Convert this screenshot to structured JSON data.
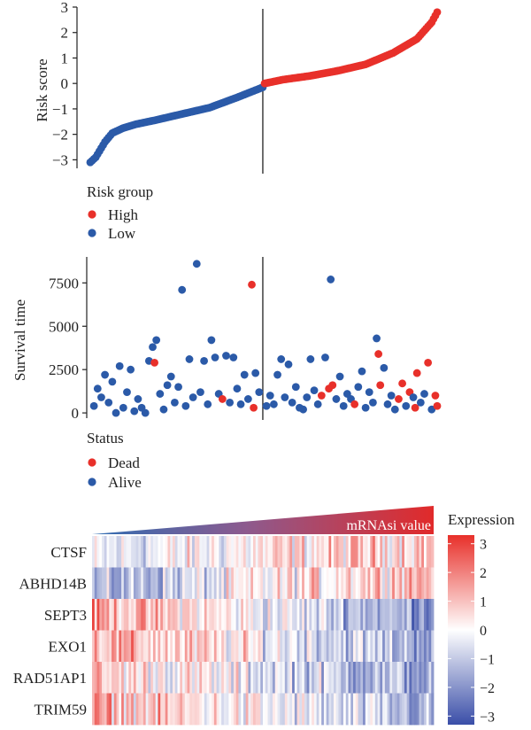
{
  "chart_data": [
    {
      "type": "scatter",
      "id": "risk-score-panel",
      "ylabel": "Risk score",
      "ylim": [
        -3.3,
        3.0
      ],
      "yticks": [
        3,
        2,
        1,
        0,
        -1,
        -2,
        -3
      ],
      "n_patients": 190,
      "cutoff_index": 94,
      "legend": {
        "title": "Risk group",
        "entries": [
          {
            "label": "High",
            "color": "#e8302a"
          },
          {
            "label": "Low",
            "color": "#2b5aa8"
          }
        ]
      },
      "curve_points": [
        [
          0,
          -3.1
        ],
        [
          3,
          -2.9
        ],
        [
          8,
          -2.3
        ],
        [
          12,
          -1.95
        ],
        [
          18,
          -1.75
        ],
        [
          25,
          -1.6
        ],
        [
          35,
          -1.45
        ],
        [
          50,
          -1.2
        ],
        [
          65,
          -0.95
        ],
        [
          80,
          -0.55
        ],
        [
          94,
          -0.15
        ],
        [
          95,
          0.0
        ],
        [
          105,
          0.15
        ],
        [
          120,
          0.3
        ],
        [
          135,
          0.5
        ],
        [
          150,
          0.75
        ],
        [
          165,
          1.2
        ],
        [
          178,
          1.75
        ],
        [
          186,
          2.4
        ],
        [
          189,
          2.8
        ]
      ]
    },
    {
      "type": "scatter",
      "id": "survival-time-panel",
      "ylabel": "Survival time",
      "ylim": [
        -200,
        9000
      ],
      "yticks": [
        7500,
        5000,
        2500,
        0
      ],
      "legend": {
        "title": "Status",
        "entries": [
          {
            "label": "Dead",
            "color": "#e8302a"
          },
          {
            "label": "Alive",
            "color": "#2b5aa8"
          }
        ]
      },
      "points": [
        [
          2,
          400,
          "Alive"
        ],
        [
          4,
          1400,
          "Alive"
        ],
        [
          6,
          900,
          "Alive"
        ],
        [
          8,
          2200,
          "Alive"
        ],
        [
          10,
          600,
          "Alive"
        ],
        [
          12,
          1800,
          "Alive"
        ],
        [
          14,
          0,
          "Alive"
        ],
        [
          16,
          2700,
          "Alive"
        ],
        [
          18,
          300,
          "Alive"
        ],
        [
          20,
          1200,
          "Alive"
        ],
        [
          22,
          2500,
          "Alive"
        ],
        [
          24,
          100,
          "Alive"
        ],
        [
          26,
          800,
          "Alive"
        ],
        [
          28,
          300,
          "Alive"
        ],
        [
          30,
          0,
          "Alive"
        ],
        [
          32,
          3000,
          "Alive"
        ],
        [
          34,
          3800,
          "Alive"
        ],
        [
          35,
          2900,
          "Dead"
        ],
        [
          36,
          4200,
          "Alive"
        ],
        [
          38,
          1100,
          "Alive"
        ],
        [
          40,
          200,
          "Alive"
        ],
        [
          42,
          1600,
          "Alive"
        ],
        [
          44,
          2100,
          "Alive"
        ],
        [
          46,
          600,
          "Alive"
        ],
        [
          48,
          1500,
          "Alive"
        ],
        [
          50,
          7100,
          "Alive"
        ],
        [
          52,
          400,
          "Alive"
        ],
        [
          54,
          3100,
          "Alive"
        ],
        [
          56,
          900,
          "Alive"
        ],
        [
          58,
          8600,
          "Alive"
        ],
        [
          60,
          1200,
          "Alive"
        ],
        [
          62,
          3000,
          "Alive"
        ],
        [
          64,
          500,
          "Alive"
        ],
        [
          66,
          4200,
          "Alive"
        ],
        [
          68,
          3200,
          "Alive"
        ],
        [
          70,
          1100,
          "Alive"
        ],
        [
          72,
          800,
          "Dead"
        ],
        [
          74,
          3300,
          "Alive"
        ],
        [
          76,
          600,
          "Alive"
        ],
        [
          78,
          3200,
          "Alive"
        ],
        [
          80,
          1400,
          "Alive"
        ],
        [
          82,
          500,
          "Alive"
        ],
        [
          84,
          2200,
          "Alive"
        ],
        [
          86,
          800,
          "Alive"
        ],
        [
          88,
          7400,
          "Dead"
        ],
        [
          89,
          300,
          "Dead"
        ],
        [
          90,
          2300,
          "Alive"
        ],
        [
          92,
          1200,
          "Alive"
        ],
        [
          96,
          400,
          "Alive"
        ],
        [
          98,
          1000,
          "Alive"
        ],
        [
          100,
          500,
          "Alive"
        ],
        [
          102,
          2200,
          "Alive"
        ],
        [
          104,
          3100,
          "Alive"
        ],
        [
          106,
          900,
          "Alive"
        ],
        [
          108,
          2800,
          "Alive"
        ],
        [
          110,
          600,
          "Alive"
        ],
        [
          112,
          1500,
          "Alive"
        ],
        [
          114,
          300,
          "Alive"
        ],
        [
          116,
          200,
          "Alive"
        ],
        [
          118,
          900,
          "Alive"
        ],
        [
          120,
          3100,
          "Alive"
        ],
        [
          122,
          1300,
          "Alive"
        ],
        [
          124,
          500,
          "Alive"
        ],
        [
          126,
          1000,
          "Dead"
        ],
        [
          128,
          3200,
          "Alive"
        ],
        [
          130,
          1400,
          "Dead"
        ],
        [
          131,
          7700,
          "Alive"
        ],
        [
          132,
          1600,
          "Dead"
        ],
        [
          134,
          800,
          "Alive"
        ],
        [
          136,
          2100,
          "Alive"
        ],
        [
          138,
          400,
          "Alive"
        ],
        [
          140,
          1100,
          "Alive"
        ],
        [
          142,
          800,
          "Alive"
        ],
        [
          144,
          500,
          "Dead"
        ],
        [
          146,
          1500,
          "Alive"
        ],
        [
          148,
          2400,
          "Alive"
        ],
        [
          150,
          300,
          "Alive"
        ],
        [
          152,
          1200,
          "Alive"
        ],
        [
          154,
          600,
          "Alive"
        ],
        [
          156,
          4300,
          "Alive"
        ],
        [
          157,
          3400,
          "Dead"
        ],
        [
          158,
          1600,
          "Dead"
        ],
        [
          160,
          2600,
          "Alive"
        ],
        [
          162,
          500,
          "Alive"
        ],
        [
          164,
          1000,
          "Alive"
        ],
        [
          166,
          200,
          "Alive"
        ],
        [
          168,
          800,
          "Dead"
        ],
        [
          170,
          1700,
          "Dead"
        ],
        [
          172,
          400,
          "Alive"
        ],
        [
          174,
          1200,
          "Dead"
        ],
        [
          176,
          900,
          "Alive"
        ],
        [
          177,
          300,
          "Dead"
        ],
        [
          178,
          2300,
          "Dead"
        ],
        [
          180,
          600,
          "Alive"
        ],
        [
          182,
          1100,
          "Alive"
        ],
        [
          184,
          2900,
          "Dead"
        ],
        [
          186,
          200,
          "Alive"
        ],
        [
          188,
          1000,
          "Dead"
        ],
        [
          189,
          400,
          "Dead"
        ]
      ]
    },
    {
      "type": "heatmap",
      "id": "expression-heatmap",
      "annotation_label": "mRNAsi value",
      "legend_title": "Expression",
      "zlim": [
        -3.3,
        3.3
      ],
      "legend_ticks": [
        3,
        2,
        1,
        0,
        -1,
        -2,
        -3
      ],
      "legend_tick_labels": [
        "3",
        "2",
        "1",
        "0",
        "−1",
        "−2",
        "−3"
      ],
      "rows": [
        "CTSF",
        "ABHD14B",
        "SEPT3",
        "EXO1",
        "RAD51AP1",
        "TRIM59"
      ],
      "n_columns": 140,
      "row_trends": [
        {
          "start": -0.6,
          "end": 1.1,
          "spread": 1.3
        },
        {
          "start": -1.6,
          "end": 1.5,
          "spread": 1.3
        },
        {
          "start": 1.5,
          "end": -1.8,
          "spread": 1.2
        },
        {
          "start": 1.4,
          "end": -1.5,
          "spread": 1.3
        },
        {
          "start": 0.8,
          "end": -1.7,
          "spread": 1.3
        },
        {
          "start": 1.3,
          "end": -1.6,
          "spread": 1.3
        }
      ],
      "colors": {
        "low": "#3a4ea8",
        "mid": "#ffffff",
        "high": "#e8302a"
      }
    }
  ]
}
